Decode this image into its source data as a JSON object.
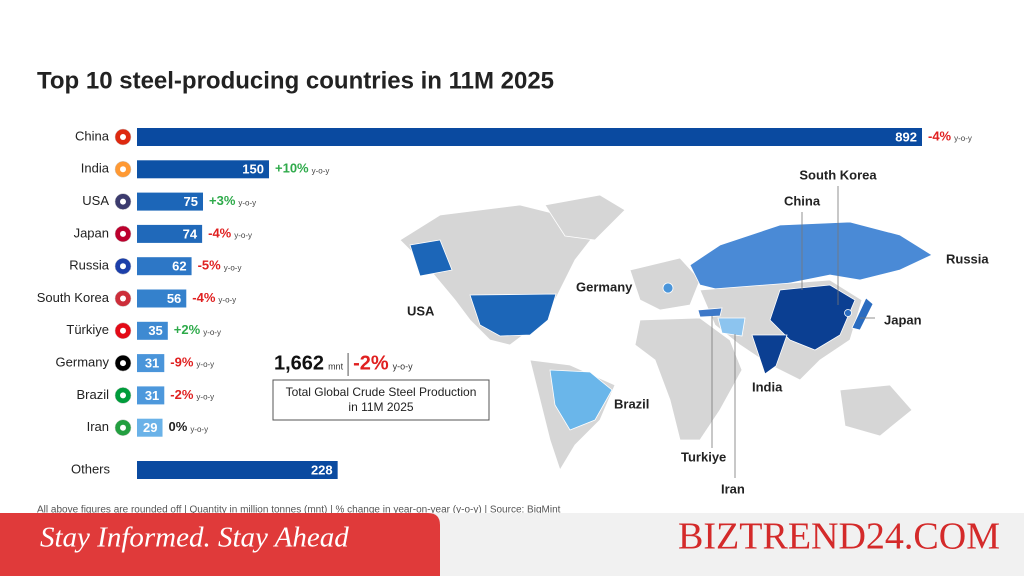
{
  "chart_data": {
    "type": "bar",
    "orientation": "horizontal",
    "title": "Top 10 steel-producing countries in 11M 2025",
    "categories": [
      "China",
      "India",
      "USA",
      "Japan",
      "Russia",
      "South Korea",
      "Türkiye",
      "Germany",
      "Brazil",
      "Iran",
      "Others"
    ],
    "values": [
      892,
      150,
      75,
      74,
      62,
      56,
      35,
      31,
      31,
      29,
      228
    ],
    "colors": [
      "#0a4aa0",
      "#0d52a6",
      "#1c66b8",
      "#2069ba",
      "#2d77c6",
      "#3481cc",
      "#3e8ad2",
      "#4a95da",
      "#4d98dc",
      "#6ab2e8",
      "#0a4aa0"
    ],
    "yoy_change": {
      "values": [
        -4,
        10,
        3,
        -4,
        -5,
        -4,
        2,
        -9,
        -2,
        0,
        null
      ],
      "value_labels": [
        "-4%",
        "+10%",
        "+3%",
        "-4%",
        "-5%",
        "-4%",
        "+2%",
        "-9%",
        "-2%",
        "0%",
        null
      ]
    },
    "yoy_unit": "y-o-y",
    "total": "1,662 mnt",
    "total_unit": "mnt",
    "total_change": "-2%",
    "total_box": [
      "Total Global Crude Steel Production",
      "in 11M 2025"
    ],
    "footnote": "All above figures are rounded off  |  Quantity in million tonnes (mnt)  |  % change in year-on-year (y-o-y)  |  Source: BigMint"
  },
  "map_labels": [
    "South Korea",
    "China",
    "Russia",
    "Japan",
    "Germany",
    "USA",
    "Brazil",
    "India",
    "Turkiye",
    "Iran"
  ],
  "banner": {
    "tagline": "Stay Informed. Stay Ahead",
    "brand": "BIZTREND24.COM"
  }
}
